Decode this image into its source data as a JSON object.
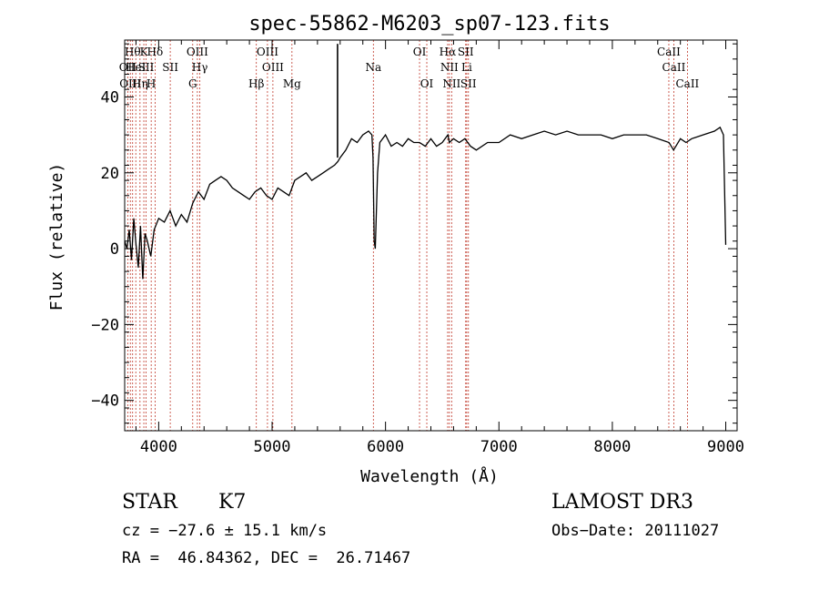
{
  "chart_data": {
    "type": "line",
    "title": "spec-55862-M6203_sp07-123.fits",
    "xlabel": "Wavelength (Å)",
    "ylabel": "Flux (relative)",
    "xlim": [
      3700,
      9100
    ],
    "ylim": [
      -48,
      55
    ],
    "xticks": [
      4000,
      5000,
      6000,
      7000,
      8000,
      9000
    ],
    "yticks": [
      -40,
      -20,
      0,
      20,
      40
    ],
    "spectrum": {
      "name": "flux",
      "x": [
        3700,
        3720,
        3740,
        3760,
        3780,
        3800,
        3820,
        3840,
        3860,
        3880,
        3900,
        3930,
        3960,
        4000,
        4050,
        4100,
        4150,
        4200,
        4250,
        4300,
        4350,
        4400,
        4450,
        4500,
        4550,
        4600,
        4650,
        4700,
        4750,
        4800,
        4850,
        4900,
        4950,
        5000,
        5050,
        5100,
        5150,
        5200,
        5250,
        5300,
        5350,
        5400,
        5450,
        5500,
        5550,
        5580,
        5600,
        5650,
        5700,
        5750,
        5800,
        5850,
        5880,
        5890,
        5900,
        5910,
        5930,
        5950,
        6000,
        6050,
        6100,
        6150,
        6200,
        6250,
        6300,
        6350,
        6400,
        6450,
        6500,
        6550,
        6563,
        6600,
        6650,
        6700,
        6750,
        6800,
        6900,
        7000,
        7100,
        7200,
        7300,
        7400,
        7500,
        7600,
        7700,
        7800,
        7900,
        8000,
        8100,
        8200,
        8300,
        8400,
        8500,
        8540,
        8600,
        8650,
        8700,
        8800,
        8900,
        8950,
        8980,
        9000
      ],
      "y": [
        2,
        0,
        5,
        -3,
        8,
        1,
        -5,
        6,
        -8,
        4,
        2,
        -2,
        5,
        8,
        7,
        10,
        6,
        9,
        7,
        12,
        15,
        13,
        17,
        18,
        19,
        18,
        16,
        15,
        14,
        13,
        15,
        16,
        14,
        13,
        16,
        15,
        14,
        18,
        19,
        20,
        18,
        19,
        20,
        21,
        22,
        23,
        24,
        26,
        29,
        28,
        30,
        31,
        30,
        24,
        2,
        0,
        20,
        28,
        30,
        27,
        28,
        27,
        29,
        28,
        28,
        27,
        29,
        27,
        28,
        30,
        28,
        29,
        28,
        29,
        27,
        26,
        28,
        28,
        30,
        29,
        30,
        31,
        30,
        31,
        30,
        30,
        30,
        29,
        30,
        30,
        30,
        29,
        28,
        26,
        29,
        28,
        29,
        30,
        31,
        32,
        30,
        1
      ]
    },
    "spikes": [
      {
        "x": 5577,
        "y": 54
      }
    ],
    "line_markers": [
      {
        "wl": 3727,
        "label": "OII",
        "row": 1
      },
      {
        "wl": 3750,
        "label": "OIII",
        "row": 2
      },
      {
        "wl": 3770,
        "label": "Hθ",
        "row": 0
      },
      {
        "wl": 3798,
        "label": "HeI",
        "row": 1
      },
      {
        "wl": 3835,
        "label": "Hη",
        "row": 2
      },
      {
        "wl": 3869,
        "label": "K",
        "row": 0
      },
      {
        "wl": 3889,
        "label": "SII",
        "row": 1
      },
      {
        "wl": 3934,
        "label": "H",
        "row": 2
      },
      {
        "wl": 3968,
        "label": "Hδ",
        "row": 0
      },
      {
        "wl": 4102,
        "label": "SII",
        "row": 1
      },
      {
        "wl": 4300,
        "label": "G",
        "row": 2
      },
      {
        "wl": 4341,
        "label": "OIII",
        "row": 0
      },
      {
        "wl": 4363,
        "label": "Hγ",
        "row": 1
      },
      {
        "wl": 4861,
        "label": "Hβ",
        "row": 2
      },
      {
        "wl": 4959,
        "label": "OIII",
        "row": 0
      },
      {
        "wl": 5007,
        "label": "OIII",
        "row": 1
      },
      {
        "wl": 5175,
        "label": "Mg",
        "row": 2
      },
      {
        "wl": 5893,
        "label": "Na",
        "row": 1
      },
      {
        "wl": 6300,
        "label": "OI",
        "row": 0
      },
      {
        "wl": 6364,
        "label": "OI",
        "row": 2
      },
      {
        "wl": 6548,
        "label": "Hα",
        "row": 0
      },
      {
        "wl": 6563,
        "label": "NII",
        "row": 1
      },
      {
        "wl": 6583,
        "label": "NII",
        "row": 2
      },
      {
        "wl": 6707,
        "label": "SII",
        "row": 0
      },
      {
        "wl": 6716,
        "label": "Li",
        "row": 1
      },
      {
        "wl": 6731,
        "label": "SII",
        "row": 2
      },
      {
        "wl": 8498,
        "label": "CaII",
        "row": 0
      },
      {
        "wl": 8542,
        "label": "CaII",
        "row": 1
      },
      {
        "wl": 8662,
        "label": "CaII",
        "row": 2
      }
    ]
  },
  "info": {
    "class": "STAR",
    "subclass": "K7",
    "survey": "LAMOST DR3",
    "cz": "cz = −27.6 ± 15.1 km/s",
    "obs_date": "Obs−Date: 20111027",
    "coords": "RA =  46.84362, DEC =  26.71467"
  }
}
